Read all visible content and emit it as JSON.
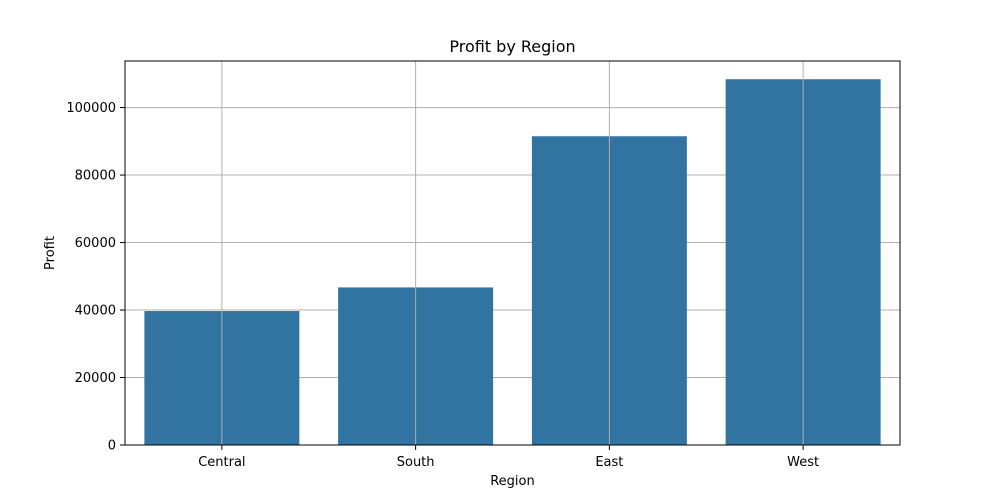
{
  "chart_data": {
    "type": "bar",
    "title": "Profit by Region",
    "xlabel": "Region",
    "ylabel": "Profit",
    "categories": [
      "Central",
      "South",
      "East",
      "West"
    ],
    "values": [
      39700,
      46700,
      91500,
      108400
    ],
    "ylim": [
      0,
      113800
    ],
    "yticks": [
      0,
      20000,
      40000,
      60000,
      80000,
      100000
    ],
    "ytick_labels": [
      "0",
      "20000",
      "40000",
      "60000",
      "80000",
      "100000"
    ],
    "grid": true,
    "bar_color": "#3274a1",
    "grid_color": "#b0b0b0"
  }
}
